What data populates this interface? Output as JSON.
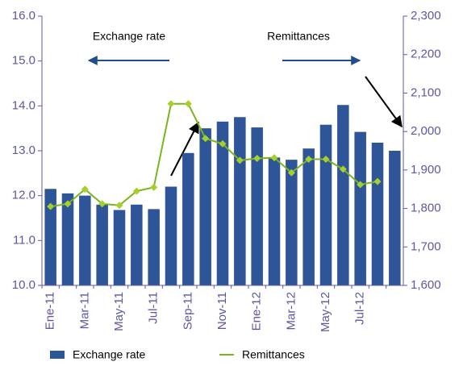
{
  "chart_data": {
    "type": "bar-line",
    "categories": [
      "Ene-11",
      null,
      "Mar-11",
      null,
      "May-11",
      null,
      "Jul-11",
      null,
      "Sep-11",
      null,
      "Nov-11",
      null,
      "Ene-12",
      null,
      "Mar-12",
      null,
      "May-12",
      null,
      "Jul-12",
      null,
      null
    ],
    "series": [
      {
        "name": "Exchange rate",
        "type": "bar",
        "color": "#2e5597",
        "values": [
          12.15,
          12.05,
          12.0,
          11.8,
          11.68,
          11.8,
          11.7,
          12.2,
          12.95,
          13.5,
          13.65,
          13.75,
          13.52,
          12.85,
          12.8,
          13.05,
          13.58,
          14.02,
          13.42,
          13.18,
          13.0
        ]
      },
      {
        "name": "Remittances",
        "type": "line",
        "axis": "y2",
        "color": "#7ab51d",
        "marker_color": "#a6cf2e",
        "values": [
          1805,
          1812,
          1850,
          1812,
          1808,
          1845,
          1855,
          2072,
          2072,
          1982,
          1968,
          1925,
          1930,
          1932,
          1893,
          1928,
          1928,
          1902,
          1862,
          1870,
          null
        ]
      }
    ],
    "ylim": [
      10,
      16
    ],
    "yticks": [
      {
        "value": 10,
        "label": "10.0"
      },
      {
        "value": 11,
        "label": "11.0"
      },
      {
        "value": 12,
        "label": "12.0"
      },
      {
        "value": 13,
        "label": "13.0"
      },
      {
        "value": 14,
        "label": "14.0"
      },
      {
        "value": 15,
        "label": "15.0"
      },
      {
        "value": 16,
        "label": "16.0"
      }
    ],
    "y2lim": [
      1600,
      2300
    ],
    "y2ticks": [
      {
        "value": 1600,
        "label": "1,600"
      },
      {
        "value": 1700,
        "label": "1,700"
      },
      {
        "value": 1800,
        "label": "1,800"
      },
      {
        "value": 1900,
        "label": "1,900"
      },
      {
        "value": 2000,
        "label": "2,000"
      },
      {
        "value": 2100,
        "label": "2,100"
      },
      {
        "value": 2200,
        "label": "2,200"
      },
      {
        "value": 2300,
        "label": "2,300"
      }
    ],
    "annotations": [
      "Exchange rate",
      "Remittances"
    ]
  }
}
